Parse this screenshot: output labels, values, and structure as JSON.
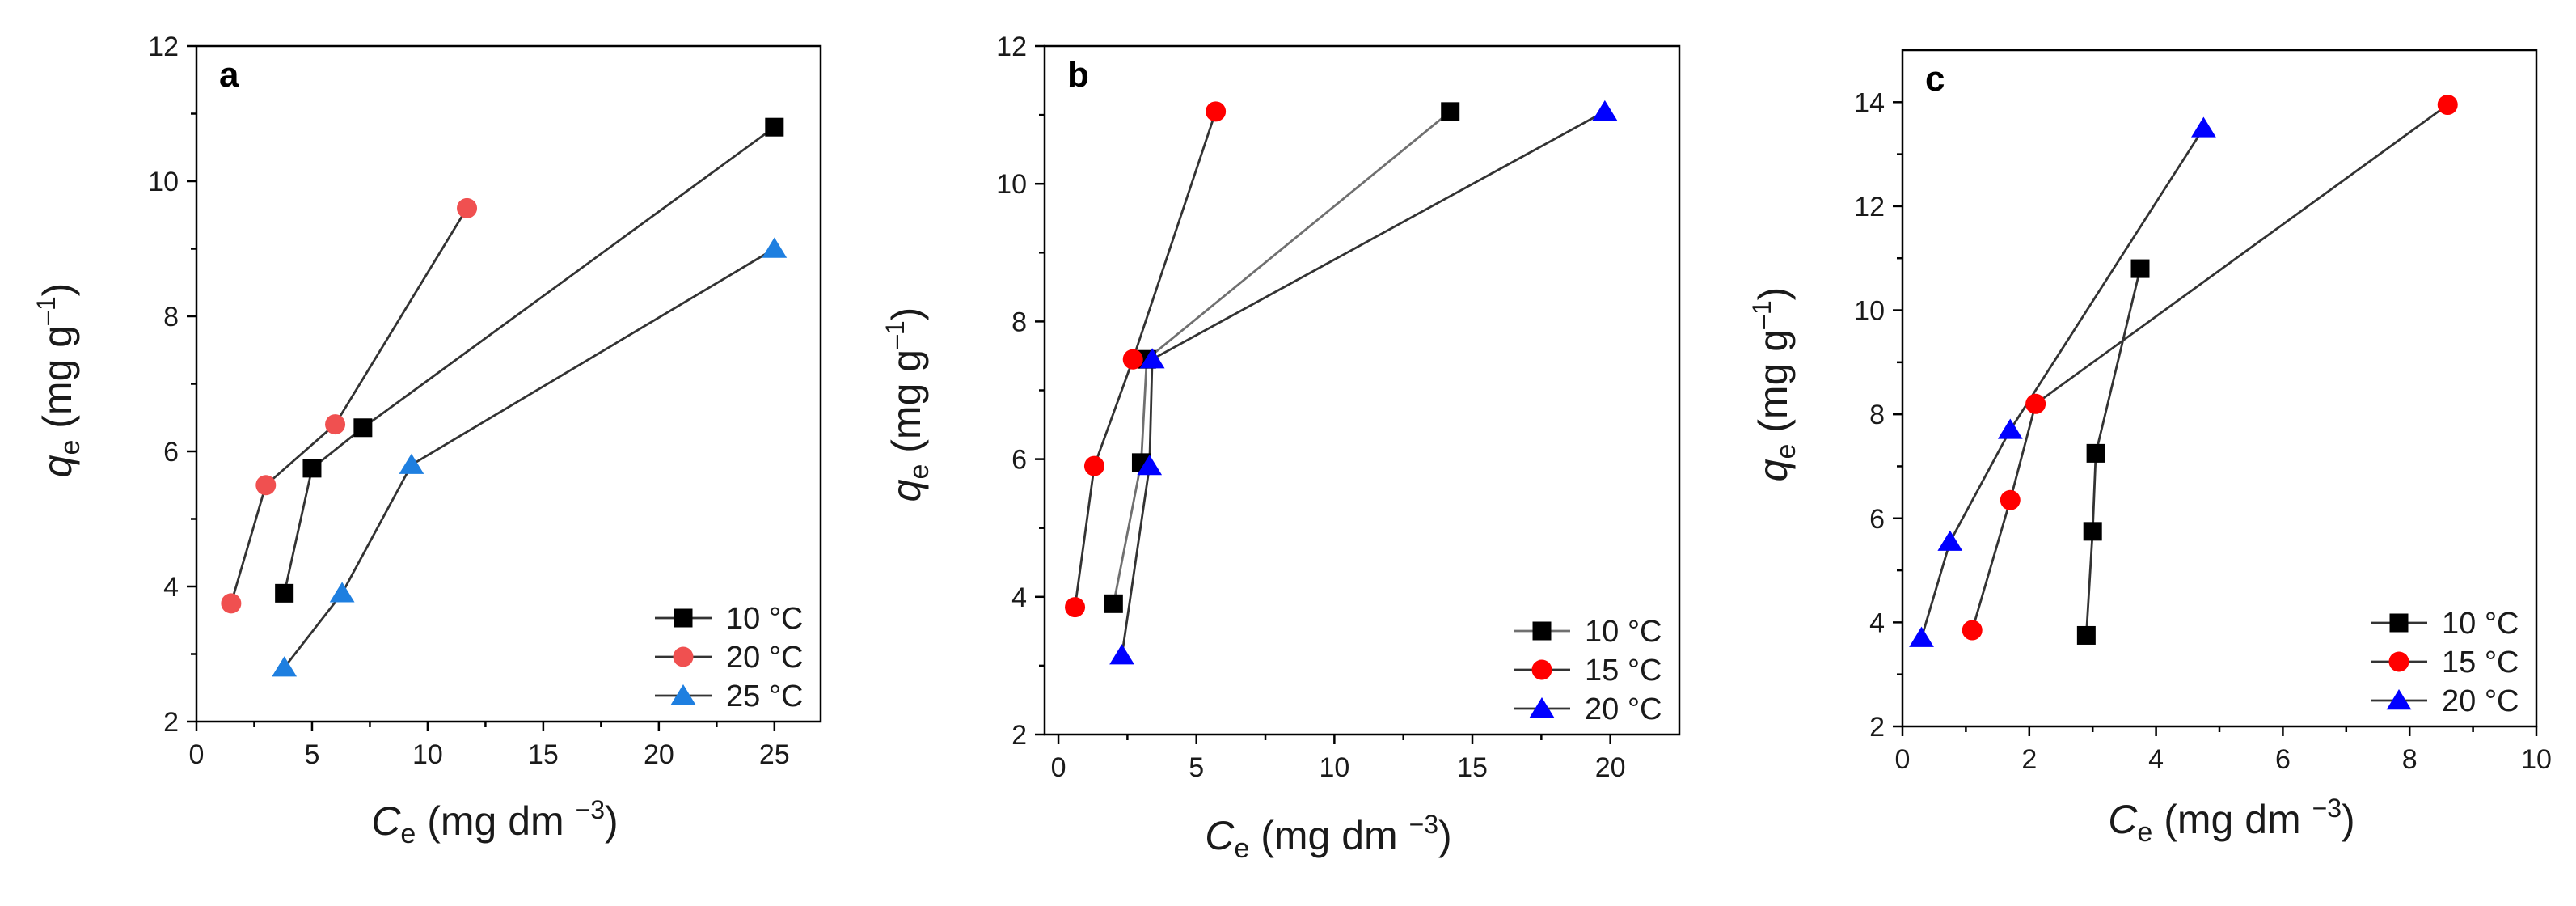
{
  "figure": {
    "ylabel_symbol": "q",
    "ylabel_sub": "e",
    "ylabel_unit": "(mg g",
    "ylabel_sup": "–1",
    "ylabel_close": ")",
    "xlabel_symbol": "C",
    "xlabel_sub": "e",
    "xlabel_unit": "(mg dm",
    "xlabel_sup": "−3",
    "xlabel_close": ")"
  },
  "chart_data": [
    {
      "panel": "a",
      "type": "line",
      "xlim": [
        0,
        27
      ],
      "ylim": [
        2,
        12
      ],
      "xticks": [
        0,
        5,
        10,
        15,
        20,
        25
      ],
      "yticks": [
        2,
        4,
        6,
        8,
        10,
        12
      ],
      "xlabel": "Ce (mg dm−3)",
      "ylabel": "qe (mg g–1)",
      "legend_position": "bottom-right",
      "series": [
        {
          "name": "10 °C",
          "color": "#000000",
          "line_color": "#333333",
          "marker": "square",
          "x": [
            3.8,
            5.0,
            7.2,
            25.0
          ],
          "y": [
            3.9,
            5.75,
            6.35,
            10.8
          ]
        },
        {
          "name": "20 °C",
          "color": "#f05050",
          "line_color": "#333333",
          "marker": "circle",
          "x": [
            1.5,
            3.0,
            6.0,
            11.7
          ],
          "y": [
            3.75,
            5.5,
            6.4,
            9.6
          ]
        },
        {
          "name": "25 °C",
          "color": "#1e7fe0",
          "line_color": "#333333",
          "marker": "triangle",
          "x": [
            3.8,
            6.3,
            9.3,
            25.0
          ],
          "y": [
            2.8,
            3.9,
            5.8,
            9.0
          ]
        }
      ]
    },
    {
      "panel": "b",
      "type": "line",
      "xlim": [
        -0.5,
        22.5
      ],
      "ylim": [
        2,
        12
      ],
      "xticks": [
        0,
        5,
        10,
        15,
        20
      ],
      "yticks": [
        2,
        4,
        6,
        8,
        10,
        12
      ],
      "xlabel": "Ce (mg dm−3)",
      "ylabel": "qe (mg g–1)",
      "legend_position": "bottom-right",
      "series": [
        {
          "name": "10 °C",
          "color": "#000000",
          "line_color": "#707070",
          "marker": "square",
          "x": [
            2.0,
            3.0,
            3.2,
            14.2
          ],
          "y": [
            3.9,
            5.95,
            7.45,
            11.05
          ]
        },
        {
          "name": "15 °C",
          "color": "#ff0000",
          "line_color": "#333333",
          "marker": "circle",
          "x": [
            0.6,
            1.3,
            2.7,
            5.7
          ],
          "y": [
            3.85,
            5.9,
            7.45,
            11.05
          ]
        },
        {
          "name": "20 °C",
          "color": "#0000ff",
          "line_color": "#333333",
          "marker": "triangle",
          "x": [
            2.3,
            3.3,
            3.4,
            19.8
          ],
          "y": [
            3.15,
            5.9,
            7.45,
            11.05
          ]
        }
      ]
    },
    {
      "panel": "c",
      "type": "line",
      "xlim": [
        0,
        10
      ],
      "ylim": [
        2,
        15
      ],
      "xticks": [
        0,
        2,
        4,
        6,
        8,
        10
      ],
      "yticks": [
        2,
        4,
        6,
        8,
        10,
        12,
        14
      ],
      "xlabel": "Ce (mg dm−3)",
      "ylabel": "qe (mg g–1)",
      "legend_position": "bottom-right",
      "series": [
        {
          "name": "10 °C",
          "color": "#000000",
          "line_color": "#333333",
          "marker": "square",
          "x": [
            2.9,
            3.0,
            3.05,
            3.75
          ],
          "y": [
            3.75,
            5.75,
            7.25,
            10.8
          ]
        },
        {
          "name": "15 °C",
          "color": "#ff0000",
          "line_color": "#333333",
          "marker": "circle",
          "x": [
            1.1,
            1.7,
            2.1,
            8.6
          ],
          "y": [
            3.85,
            6.35,
            8.2,
            13.95
          ]
        },
        {
          "name": "20 °C",
          "color": "#0000ff",
          "line_color": "#333333",
          "marker": "triangle",
          "x": [
            0.3,
            0.75,
            1.7,
            4.75
          ],
          "y": [
            3.7,
            5.55,
            7.7,
            13.5
          ]
        }
      ]
    }
  ]
}
